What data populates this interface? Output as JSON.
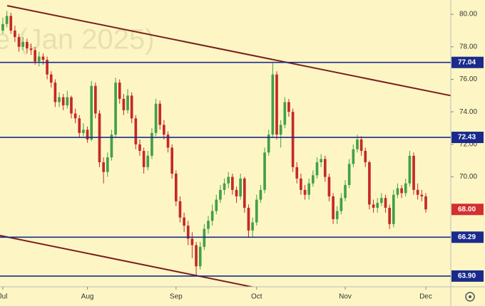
{
  "chart_data": {
    "type": "candlestick",
    "watermark": "e (Jan 2025)",
    "up_color": "#43a047",
    "down_color": "#c62828",
    "level_color": "#1a2a8c",
    "last_color": "#d32f2f",
    "ylim": [
      63.24,
      80.88
    ],
    "yticks": [
      {
        "value": 70,
        "label": "70.00"
      },
      {
        "value": 72,
        "label": "72.00"
      },
      {
        "value": 74,
        "label": "74.00"
      },
      {
        "value": 76,
        "label": "76.00"
      },
      {
        "value": 78,
        "label": "78.00"
      },
      {
        "value": 80,
        "label": "80.00"
      }
    ],
    "xlim": [
      -0.7,
      111.2
    ],
    "xticks": [
      {
        "value": 0,
        "label": "Jul"
      },
      {
        "value": 21,
        "label": "Aug"
      },
      {
        "value": 43,
        "label": "Sep"
      },
      {
        "value": 63,
        "label": "Oct"
      },
      {
        "value": 85,
        "label": "Nov"
      },
      {
        "value": 105,
        "label": "Dec"
      }
    ],
    "price_lines": [
      77.04,
      72.43,
      66.29,
      {
        "value": 63.9,
        "label": "63.90"
      }
    ],
    "last_price": {
      "value": 68,
      "label": "68.00"
    },
    "candles": {
      "open": [
        79.0,
        79.4,
        79.9,
        79.0,
        78.6,
        78.0,
        78.3,
        77.9,
        77.8,
        77.1,
        77.4,
        77.2,
        76.3,
        75.8,
        74.6,
        74.9,
        74.4,
        74.9,
        73.9,
        73.6,
        72.7,
        72.9,
        72.3,
        75.6,
        73.9,
        70.9,
        70.3,
        71.2,
        72.6,
        75.8,
        74.8,
        74.1,
        75.0,
        73.6,
        72.0,
        71.6,
        70.6,
        71.3,
        72.7,
        74.5,
        73.2,
        72.6,
        71.8,
        70.2,
        68.5,
        67.5,
        67.0,
        66.2,
        65.8,
        64.5,
        65.7,
        66.8,
        67.3,
        67.9,
        68.6,
        69.2,
        69.6,
        70.0,
        69.2,
        68.8,
        69.9,
        68.1,
        66.7,
        67.2,
        68.6,
        69.2,
        71.5,
        72.6,
        76.3,
        72.6,
        73.2,
        74.6,
        74.0,
        70.6,
        69.9,
        69.2,
        68.9,
        69.6,
        70.1,
        70.9,
        71.1,
        70.0,
        68.8,
        67.4,
        67.9,
        68.7,
        69.5,
        70.8,
        71.7,
        72.3,
        71.6,
        70.9,
        68.3,
        68.1,
        68.4,
        68.7,
        68.1,
        67.1,
        68.9,
        69.3,
        69.0,
        69.6,
        71.3,
        69.2,
        68.9,
        68.8
      ],
      "high": [
        79.8,
        80.2,
        80.1,
        79.3,
        78.8,
        78.6,
        78.5,
        78.2,
        78.0,
        77.7,
        77.6,
        77.4,
        76.5,
        76.0,
        75.2,
        75.1,
        75.3,
        75.0,
        74.2,
        73.8,
        73.3,
        73.1,
        75.9,
        75.8,
        74.1,
        71.2,
        71.5,
        72.9,
        76.1,
        76.0,
        75.1,
        75.4,
        75.2,
        73.8,
        72.3,
        71.8,
        71.6,
        73.0,
        74.8,
        74.7,
        73.5,
        72.8,
        72.0,
        70.4,
        68.8,
        67.8,
        67.3,
        66.6,
        66.0,
        66.0,
        67.1,
        67.6,
        68.3,
        68.9,
        69.5,
        69.9,
        70.3,
        70.2,
        69.4,
        70.2,
        70.0,
        68.3,
        67.5,
        68.9,
        69.5,
        71.8,
        72.9,
        77.0,
        76.5,
        73.5,
        74.9,
        74.8,
        74.2,
        70.9,
        70.2,
        69.5,
        69.9,
        70.4,
        71.2,
        71.4,
        71.3,
        70.2,
        69.0,
        68.2,
        69.0,
        69.8,
        71.1,
        72.0,
        72.6,
        72.5,
        71.8,
        71.0,
        68.6,
        68.7,
        69.0,
        68.9,
        68.3,
        69.2,
        69.6,
        69.5,
        69.9,
        71.6,
        71.5,
        69.6,
        69.2,
        69.0
      ],
      "low": [
        78.8,
        79.2,
        78.8,
        78.3,
        77.7,
        77.8,
        77.6,
        77.5,
        76.9,
        76.8,
        76.9,
        76.0,
        75.5,
        74.3,
        74.3,
        74.1,
        74.2,
        73.6,
        73.3,
        72.4,
        72.5,
        72.1,
        72.2,
        73.6,
        70.6,
        69.6,
        70.0,
        71.0,
        72.4,
        74.5,
        73.8,
        73.9,
        73.3,
        71.7,
        71.3,
        70.2,
        70.4,
        71.1,
        72.5,
        72.9,
        72.3,
        71.5,
        69.9,
        68.2,
        67.2,
        66.6,
        65.8,
        65.0,
        63.9,
        64.3,
        65.5,
        66.5,
        67.0,
        67.7,
        68.4,
        68.9,
        69.3,
        68.9,
        68.4,
        68.6,
        67.8,
        66.3,
        66.3,
        67.0,
        68.4,
        69.0,
        71.3,
        72.4,
        72.3,
        71.8,
        73.0,
        73.7,
        70.3,
        69.6,
        68.9,
        68.6,
        68.6,
        69.4,
        69.9,
        70.6,
        69.7,
        68.5,
        67.1,
        67.1,
        67.7,
        68.5,
        69.3,
        70.6,
        71.5,
        71.3,
        70.6,
        68.0,
        67.8,
        67.8,
        68.2,
        67.8,
        66.8,
        66.9,
        68.7,
        68.7,
        68.8,
        69.4,
        68.9,
        68.6,
        68.5,
        67.8
      ],
      "close": [
        79.4,
        79.9,
        79.0,
        78.6,
        78.0,
        78.3,
        77.9,
        77.8,
        77.1,
        77.4,
        77.2,
        76.3,
        75.8,
        74.6,
        74.9,
        74.4,
        74.9,
        73.9,
        73.6,
        72.7,
        72.9,
        72.3,
        75.6,
        73.9,
        70.9,
        70.3,
        71.2,
        72.6,
        75.8,
        74.8,
        74.1,
        75.0,
        73.6,
        72.0,
        71.6,
        70.6,
        71.3,
        72.7,
        74.5,
        73.2,
        72.6,
        71.8,
        70.2,
        68.5,
        67.5,
        67.0,
        66.2,
        65.8,
        64.5,
        65.7,
        66.8,
        67.3,
        67.9,
        68.6,
        69.2,
        69.6,
        70.0,
        69.2,
        68.8,
        69.9,
        68.1,
        66.7,
        67.2,
        68.6,
        69.2,
        71.5,
        72.6,
        76.3,
        72.6,
        73.2,
        74.6,
        74.0,
        70.6,
        69.9,
        69.2,
        68.9,
        69.6,
        70.1,
        70.9,
        71.1,
        70.0,
        68.8,
        67.4,
        67.9,
        68.7,
        69.5,
        70.8,
        71.7,
        72.3,
        71.6,
        70.9,
        68.3,
        68.1,
        68.4,
        68.7,
        68.1,
        67.1,
        68.9,
        69.3,
        69.0,
        69.6,
        71.3,
        69.2,
        68.9,
        68.8,
        68.0
      ]
    }
  }
}
